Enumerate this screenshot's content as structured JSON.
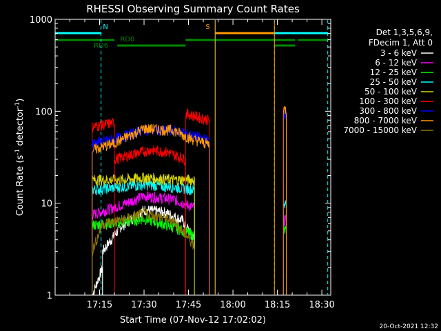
{
  "chart_data": {
    "type": "line",
    "title": "RHESSI Observing Summary Count Rates",
    "xlabel": "Start Time (07-Nov-12 17:02:02)",
    "ylabel_main": "Count Rate (s",
    "ylabel_sup1": "-1",
    "ylabel_mid": " detector",
    "ylabel_sup2": "-1",
    "ylabel_end": ")",
    "yscale": "log",
    "ylim": [
      1,
      1000
    ],
    "xlim_minutes": [
      0,
      93
    ],
    "x_ticks": [
      {
        "m": 15,
        "label": "17:15"
      },
      {
        "m": 30,
        "label": "17:30"
      },
      {
        "m": 45,
        "label": "17:45"
      },
      {
        "m": 60,
        "label": "18:00"
      },
      {
        "m": 75,
        "label": "18:15"
      },
      {
        "m": 90,
        "label": "18:30"
      }
    ],
    "y_ticks": [
      {
        "v": 1,
        "label": "1"
      },
      {
        "v": 10,
        "label": "10"
      },
      {
        "v": 100,
        "label": "100"
      },
      {
        "v": 1000,
        "label": "1000"
      }
    ],
    "legend_header": [
      "Det 1,3,5,6,9,",
      "FDecim 1, Att 0"
    ],
    "series": [
      {
        "name": "3 - 6 keV",
        "color": "#ffffff",
        "segments": [
          {
            "t0": 12.5,
            "t1": 16,
            "levels": [
              [
                12.5,
                1.0
              ],
              [
                16,
                2.0
              ]
            ]
          },
          {
            "t0": 16,
            "t1": 47,
            "levels": [
              [
                16,
                3.0
              ],
              [
                22,
                5.5
              ],
              [
                30,
                8.5
              ],
              [
                37,
                8.0
              ],
              [
                43,
                6.5
              ],
              [
                47,
                4.0
              ]
            ]
          }
        ]
      },
      {
        "name": "6 - 12 keV",
        "color": "#ff00ff",
        "segments": [
          {
            "t0": 12.5,
            "t1": 47,
            "levels": [
              [
                12.5,
                7.5
              ],
              [
                22,
                9.5
              ],
              [
                30,
                12.0
              ],
              [
                40,
                11.0
              ],
              [
                47,
                9.0
              ]
            ]
          },
          {
            "t0": 77,
            "t1": 78,
            "levels": [
              [
                77,
                6.5
              ],
              [
                78,
                6.5
              ]
            ]
          }
        ]
      },
      {
        "name": "12 - 25 keV",
        "color": "#00ff00",
        "segments": [
          {
            "t0": 12.5,
            "t1": 47,
            "levels": [
              [
                12.5,
                5.8
              ],
              [
                22,
                6.2
              ],
              [
                30,
                6.8
              ],
              [
                40,
                5.5
              ],
              [
                47,
                4.5
              ]
            ]
          },
          {
            "t0": 77,
            "t1": 78,
            "levels": [
              [
                77,
                5.0
              ],
              [
                78,
                5.0
              ]
            ]
          }
        ]
      },
      {
        "name": "25 - 50 keV",
        "color": "#00ffff",
        "segments": [
          {
            "t0": 12.5,
            "t1": 47,
            "levels": [
              [
                12.5,
                14.0
              ],
              [
                22,
                15.0
              ],
              [
                30,
                16.0
              ],
              [
                40,
                15.0
              ],
              [
                47,
                14.0
              ]
            ]
          },
          {
            "t0": 77,
            "t1": 78,
            "levels": [
              [
                77,
                10.0
              ],
              [
                78,
                10.0
              ]
            ]
          }
        ]
      },
      {
        "name": "50 - 100 keV",
        "color": "#d8d800",
        "segments": [
          {
            "t0": 12.5,
            "t1": 47,
            "levels": [
              [
                12.5,
                18.0
              ],
              [
                22,
                18.0
              ],
              [
                30,
                19.0
              ],
              [
                40,
                18.0
              ],
              [
                47,
                18.0
              ]
            ]
          }
        ]
      },
      {
        "name": "100 - 300 keV",
        "color": "#ff0000",
        "segments": [
          {
            "t0": 12.5,
            "t1": 20,
            "levels": [
              [
                12.5,
                68.0
              ],
              [
                20,
                75.0
              ]
            ]
          },
          {
            "t0": 20,
            "t1": 44,
            "levels": [
              [
                20,
                30.0
              ],
              [
                26,
                34.0
              ],
              [
                32,
                38.0
              ],
              [
                38,
                36.0
              ],
              [
                44,
                30.0
              ]
            ]
          },
          {
            "t0": 44,
            "t1": 52,
            "levels": [
              [
                44,
                95.0
              ],
              [
                52,
                80.0
              ]
            ]
          },
          {
            "t0": 77,
            "t1": 78,
            "levels": [
              [
                77,
                100.0
              ],
              [
                78,
                100.0
              ]
            ]
          }
        ]
      },
      {
        "name": "300 - 800 keV",
        "color": "#0000ff",
        "segments": [
          {
            "t0": 12.5,
            "t1": 52,
            "levels": [
              [
                12.5,
                45.0
              ],
              [
                20,
                50.0
              ],
              [
                30,
                63.0
              ],
              [
                40,
                62.0
              ],
              [
                46,
                55.0
              ],
              [
                52,
                48.0
              ]
            ]
          },
          {
            "t0": 77,
            "t1": 78,
            "levels": [
              [
                77,
                95.0
              ],
              [
                78,
                95.0
              ]
            ]
          }
        ]
      },
      {
        "name": "800 - 7000 keV",
        "color": "#ff9900",
        "segments": [
          {
            "t0": 12.5,
            "t1": 52,
            "levels": [
              [
                12.5,
                38.0
              ],
              [
                20,
                45.0
              ],
              [
                30,
                65.0
              ],
              [
                40,
                62.0
              ],
              [
                46,
                50.0
              ],
              [
                52,
                44.0
              ]
            ]
          },
          {
            "t0": 77,
            "t1": 78,
            "levels": [
              [
                77,
                105.0
              ],
              [
                78,
                105.0
              ]
            ]
          }
        ]
      },
      {
        "name": "7000 - 15000 keV",
        "color": "#8b7500",
        "segments": [
          {
            "t0": 12.5,
            "t1": 47,
            "levels": [
              [
                12.5,
                3.0
              ],
              [
                16,
                6.0
              ],
              [
                22,
                6.5
              ],
              [
                30,
                7.8
              ],
              [
                40,
                6.5
              ],
              [
                47,
                3.5
              ]
            ]
          }
        ]
      }
    ],
    "state_bars": [
      {
        "label": "N",
        "color": "#00ffff",
        "level": "top",
        "segments": [
          [
            0,
            15.5
          ],
          [
            74,
            92
          ]
        ],
        "label_m": 17
      },
      {
        "label": "S",
        "color": "#ff9900",
        "level": "top",
        "segments": [
          [
            54,
            74
          ]
        ],
        "label_m": 51.5
      },
      {
        "label": "RD0",
        "color": "#008800",
        "level": "mid",
        "segments": [
          [
            0,
            20
          ],
          [
            44,
            74
          ],
          [
            74,
            81
          ],
          [
            82,
            92
          ]
        ],
        "label_m": 23
      },
      {
        "label": "RD6",
        "color": "#008800",
        "level": "low",
        "segments": [
          [
            21,
            44
          ],
          [
            74,
            81
          ]
        ],
        "label_m": 15.5
      }
    ],
    "vertical_markers": [
      {
        "color": "#00ffff",
        "style": "solid",
        "m": 0
      },
      {
        "color": "#00ffff",
        "style": "dashed",
        "m": 15.5
      },
      {
        "color": "#00ffff",
        "style": "solid",
        "m": 54
      },
      {
        "color": "#00ffff",
        "style": "dashed",
        "m": 74
      },
      {
        "color": "#00ffff",
        "style": "dashed",
        "m": 92
      },
      {
        "color": "#ff9900",
        "style": "solid",
        "m": 54
      },
      {
        "color": "#ff9900",
        "style": "solid",
        "m": 74
      }
    ],
    "timestamp": "20-Oct-2021 12:32"
  }
}
